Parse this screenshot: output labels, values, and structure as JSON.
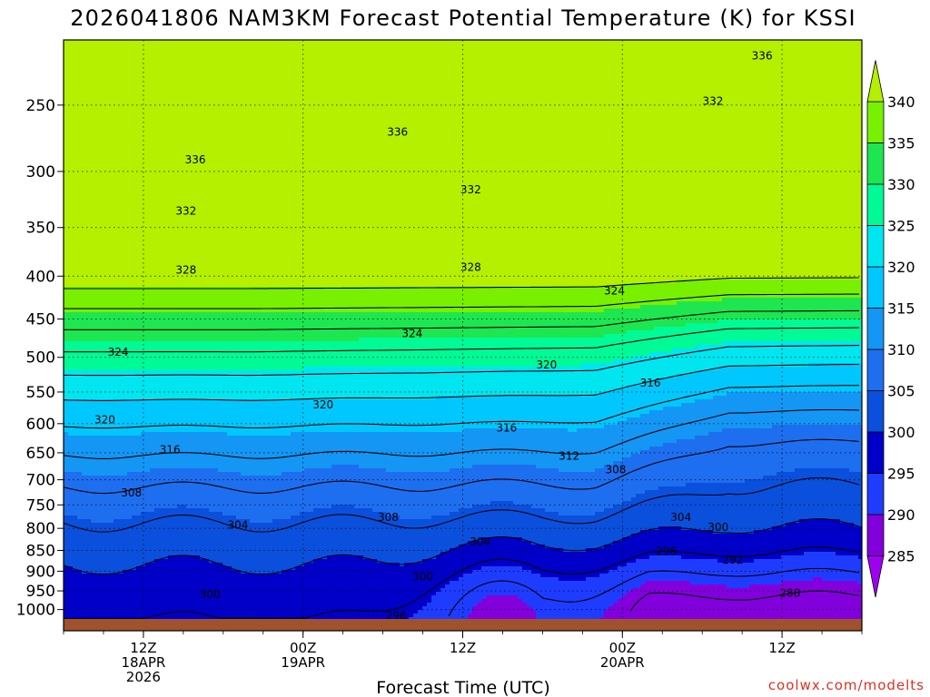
{
  "chart_data": {
    "type": "heatmap",
    "title": "2026041806 NAM3KM Forecast Potential Temperature (K) for KSSI",
    "xlabel": "Forecast Time (UTC)",
    "ylabel": "",
    "y_axis": {
      "scale": "log",
      "reversed": true,
      "unit": "hPa",
      "ticks": [
        1000,
        950,
        900,
        850,
        800,
        750,
        700,
        650,
        600,
        550,
        500,
        450,
        400,
        350,
        300,
        250
      ],
      "tick_labels": [
        "1000",
        "950",
        "900",
        "850",
        "800",
        "750",
        "700",
        "650",
        "600",
        "550",
        "500",
        "450",
        "400",
        "350",
        "300",
        "250"
      ]
    },
    "x_axis": {
      "unit": "forecast hour",
      "range": [
        0,
        60
      ],
      "ticks": [
        6,
        18,
        30,
        42,
        54
      ],
      "tick_labels": [
        [
          "12Z",
          "18APR",
          "2026"
        ],
        [
          "00Z",
          "19APR"
        ],
        [
          "12Z"
        ],
        [
          "00Z",
          "20APR"
        ],
        [
          "12Z"
        ]
      ]
    },
    "grid": true,
    "colorbar": {
      "levels": [
        285,
        290,
        295,
        300,
        305,
        310,
        315,
        320,
        325,
        330,
        335,
        340
      ],
      "labels": [
        "285",
        "290",
        "295",
        "300",
        "305",
        "310",
        "315",
        "320",
        "325",
        "330",
        "335",
        "340"
      ],
      "colors": [
        "#a000f0",
        "#8200dc",
        "#1e3cff",
        "#0000c8",
        "#0a50dc",
        "#1e6ef0",
        "#1496f5",
        "#00c8ff",
        "#00e6f0",
        "#00fa96",
        "#1ee650",
        "#78f000",
        "#b4f000"
      ],
      "placement": "right"
    },
    "ground_color": "#a0522d",
    "contour_interval": 4,
    "contour_labels": [
      {
        "value": "336",
        "x": 52.5,
        "p": 218
      },
      {
        "value": "332",
        "x": 48.8,
        "p": 247
      },
      {
        "value": "336",
        "x": 25.1,
        "p": 269
      },
      {
        "value": "336",
        "x": 9.9,
        "p": 290
      },
      {
        "value": "332",
        "x": 30.6,
        "p": 315
      },
      {
        "value": "332",
        "x": 9.2,
        "p": 334
      },
      {
        "value": "328",
        "x": 30.6,
        "p": 390
      },
      {
        "value": "328",
        "x": 9.2,
        "p": 393
      },
      {
        "value": "324",
        "x": 41.4,
        "p": 416
      },
      {
        "value": "324",
        "x": 26.2,
        "p": 468
      },
      {
        "value": "324",
        "x": 4.1,
        "p": 492
      },
      {
        "value": "320",
        "x": 36.3,
        "p": 510
      },
      {
        "value": "316",
        "x": 44.1,
        "p": 536
      },
      {
        "value": "320",
        "x": 19.5,
        "p": 569
      },
      {
        "value": "320",
        "x": 3.1,
        "p": 593
      },
      {
        "value": "316",
        "x": 33.3,
        "p": 606
      },
      {
        "value": "316",
        "x": 8.0,
        "p": 644
      },
      {
        "value": "312",
        "x": 38.0,
        "p": 655
      },
      {
        "value": "308",
        "x": 41.5,
        "p": 680
      },
      {
        "value": "308",
        "x": 5.1,
        "p": 725
      },
      {
        "value": "308",
        "x": 24.4,
        "p": 775
      },
      {
        "value": "304",
        "x": 46.4,
        "p": 775
      },
      {
        "value": "304",
        "x": 13.1,
        "p": 792
      },
      {
        "value": "300",
        "x": 49.2,
        "p": 797
      },
      {
        "value": "304",
        "x": 31.3,
        "p": 829
      },
      {
        "value": "296",
        "x": 45.3,
        "p": 851
      },
      {
        "value": "292",
        "x": 50.3,
        "p": 872
      },
      {
        "value": "300",
        "x": 27.0,
        "p": 913
      },
      {
        "value": "300",
        "x": 11.0,
        "p": 958
      },
      {
        "value": "288",
        "x": 54.6,
        "p": 955
      },
      {
        "value": "296",
        "x": 25.0,
        "p": 1016
      }
    ]
  },
  "credit": "coolwx.com/modelts"
}
